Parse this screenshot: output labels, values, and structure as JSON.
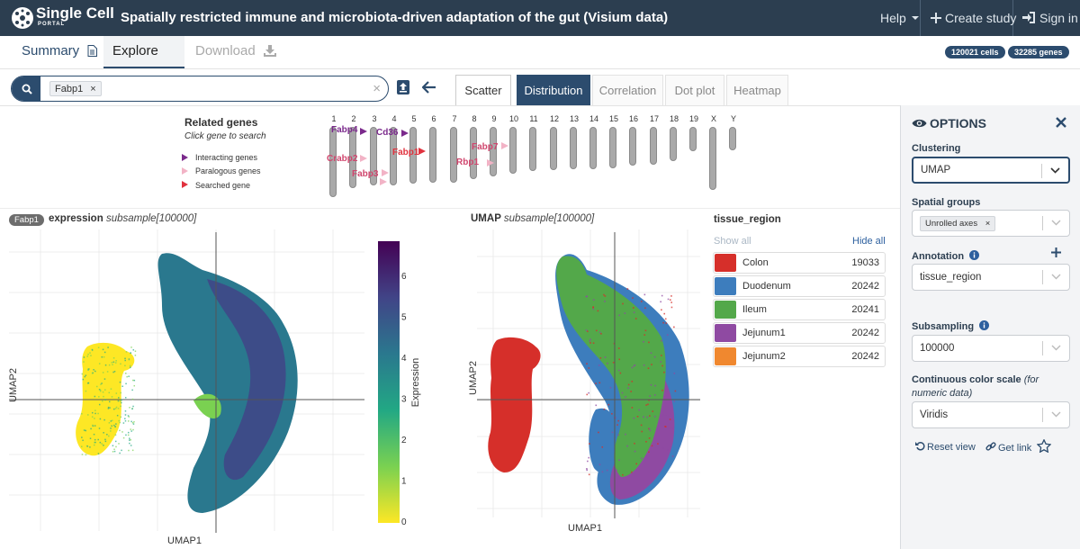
{
  "navbar": {
    "brand": "Single Cell",
    "brand_sub": "PORTAL",
    "title": "Spatially restricted immune and microbiota-driven adaptation of the gut (Visium data)",
    "help": "Help",
    "create_study": "Create study",
    "sign_in": "Sign in"
  },
  "tabs": {
    "summary": "Summary",
    "explore": "Explore",
    "download": "Download"
  },
  "badges": {
    "cells": "120021 cells",
    "genes": "32285 genes"
  },
  "search": {
    "chip": "Fabp1"
  },
  "plot_tabs": [
    "Scatter",
    "Distribution",
    "Correlation",
    "Dot plot",
    "Heatmap"
  ],
  "related": {
    "title": "Related genes",
    "subtitle": "Click gene to search",
    "legend": [
      "Interacting genes",
      "Paralogous genes",
      "Searched gene"
    ],
    "chromosomes": [
      "1",
      "2",
      "3",
      "4",
      "5",
      "6",
      "7",
      "8",
      "9",
      "10",
      "11",
      "12",
      "13",
      "14",
      "15",
      "16",
      "17",
      "18",
      "19",
      "X",
      "Y"
    ],
    "genes": {
      "fabp4": "Fabp4",
      "cd36": "Cd36",
      "crabp2": "Crabp2",
      "fabp3": "Fabp3",
      "fabp1": "Fabp1",
      "fabp7": "Fabp7",
      "rbp1": "Rbp1"
    }
  },
  "expression_plot": {
    "gene_badge": "Fabp1",
    "title": "expression",
    "subtitle": "subsample[100000]",
    "ylabel": "UMAP2",
    "xlabel": "UMAP1",
    "colorbar_label": "Expression",
    "colorbar_ticks": [
      "6",
      "5",
      "4",
      "3",
      "2",
      "1",
      "0"
    ]
  },
  "umap_plot": {
    "title": "UMAP",
    "subtitle": "subsample[100000]",
    "ylabel": "UMAP2",
    "xlabel": "UMAP1"
  },
  "legend": {
    "title": "tissue_region",
    "show_all": "Show all",
    "hide_all": "Hide all",
    "items": [
      {
        "name": "Colon",
        "count": "19033",
        "color": "#d62f2a"
      },
      {
        "name": "Duodenum",
        "count": "20242",
        "color": "#3d7dbd"
      },
      {
        "name": "Ileum",
        "count": "20241",
        "color": "#53a84a"
      },
      {
        "name": "Jejunum1",
        "count": "20242",
        "color": "#8f4aa2"
      },
      {
        "name": "Jejunum2",
        "count": "20242",
        "color": "#f0882f"
      }
    ]
  },
  "options": {
    "title": "OPTIONS",
    "clustering_label": "Clustering",
    "clustering_value": "UMAP",
    "spatial_label": "Spatial groups",
    "spatial_chip": "Unrolled axes",
    "annotation_label": "Annotation",
    "annotation_value": "tissue_region",
    "subsampling_label": "Subsampling",
    "subsampling_value": "100000",
    "colorscale_label": "Continuous color scale",
    "colorscale_hint": "(for numeric data)",
    "colorscale_value": "Viridis",
    "reset_view": "Reset view",
    "get_link": "Get link"
  },
  "colors": {
    "navbar": "#2c3e50",
    "accent": "#2c4c6e",
    "viridis": [
      "#fde725",
      "#7ad151",
      "#22a884",
      "#2a788e",
      "#414487",
      "#440154"
    ]
  }
}
